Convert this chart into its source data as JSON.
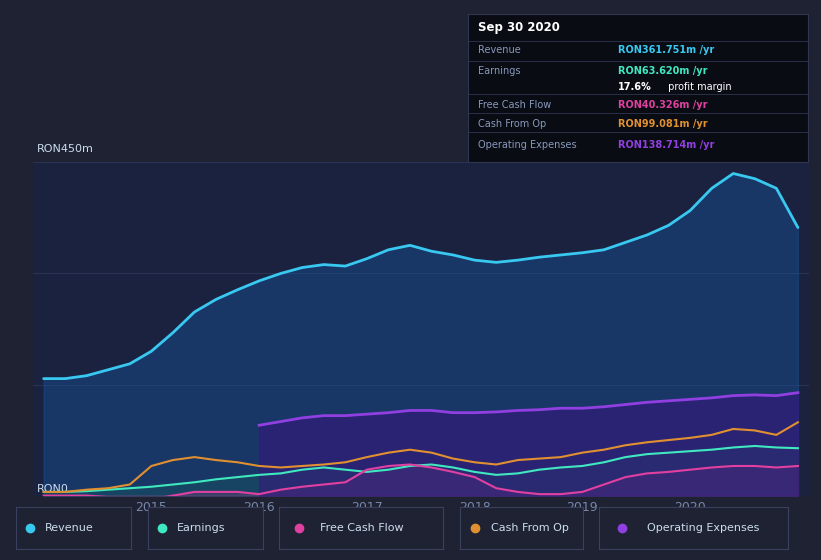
{
  "bg_color": "#1e2232",
  "chart_bg_lower": "#1a2240",
  "chart_bg_upper": "#1e2a40",
  "grid_color": "#2a3555",
  "ylabel_top": "RON450m",
  "ylabel_bottom": "RON0",
  "ylim": [
    0,
    450
  ],
  "xlim_start": 2013.9,
  "xlim_end": 2021.1,
  "x_ticks": [
    2015,
    2016,
    2017,
    2018,
    2019,
    2020
  ],
  "legend_bg": "#252a3d",
  "legend_border": "#3a4060",
  "legend_items": [
    {
      "label": "Revenue",
      "color": "#38c8f0"
    },
    {
      "label": "Earnings",
      "color": "#40e8c0"
    },
    {
      "label": "Free Cash Flow",
      "color": "#e040a0"
    },
    {
      "label": "Cash From Op",
      "color": "#e09030"
    },
    {
      "label": "Operating Expenses",
      "color": "#9040e0"
    }
  ],
  "info_box": {
    "title": "Sep 30 2020",
    "title_color": "#ffffff",
    "bg": "#0a0c14",
    "border": "#303550",
    "rows": [
      {
        "label": "Revenue",
        "value": "RON361.751m /yr",
        "vc": "#38c8f0"
      },
      {
        "label": "Earnings",
        "value": "RON63.620m /yr",
        "vc": "#40e8c0"
      },
      {
        "label": "",
        "value": "17.6% profit margin",
        "vc": "#ffffff"
      },
      {
        "label": "Free Cash Flow",
        "value": "RON40.326m /yr",
        "vc": "#e040a0"
      },
      {
        "label": "Cash From Op",
        "value": "RON99.081m /yr",
        "vc": "#e09030"
      },
      {
        "label": "Operating Expenses",
        "value": "RON138.714m /yr",
        "vc": "#9040e0"
      }
    ]
  },
  "series": {
    "x": [
      2014.0,
      2014.2,
      2014.4,
      2014.6,
      2014.8,
      2015.0,
      2015.2,
      2015.4,
      2015.6,
      2015.8,
      2016.0,
      2016.2,
      2016.4,
      2016.6,
      2016.8,
      2017.0,
      2017.2,
      2017.4,
      2017.6,
      2017.8,
      2018.0,
      2018.2,
      2018.4,
      2018.6,
      2018.8,
      2019.0,
      2019.2,
      2019.4,
      2019.6,
      2019.8,
      2020.0,
      2020.2,
      2020.4,
      2020.6,
      2020.8,
      2021.0
    ],
    "revenue": [
      158,
      158,
      162,
      170,
      178,
      195,
      220,
      248,
      265,
      278,
      290,
      300,
      308,
      312,
      310,
      320,
      332,
      338,
      330,
      325,
      318,
      315,
      318,
      322,
      325,
      328,
      332,
      342,
      352,
      365,
      385,
      415,
      435,
      428,
      415,
      362
    ],
    "earnings": [
      5,
      5,
      6,
      8,
      10,
      12,
      15,
      18,
      22,
      25,
      28,
      30,
      35,
      38,
      35,
      32,
      35,
      40,
      42,
      38,
      32,
      28,
      30,
      35,
      38,
      40,
      45,
      52,
      56,
      58,
      60,
      62,
      65,
      67,
      65,
      64
    ],
    "free_cash_flow": [
      0,
      0,
      0,
      -2,
      -5,
      -5,
      0,
      5,
      5,
      5,
      2,
      8,
      12,
      15,
      18,
      35,
      40,
      42,
      38,
      32,
      25,
      10,
      5,
      2,
      2,
      5,
      15,
      25,
      30,
      32,
      35,
      38,
      40,
      40,
      38,
      40
    ],
    "cash_from_op": [
      5,
      5,
      8,
      10,
      15,
      40,
      48,
      52,
      48,
      45,
      40,
      38,
      40,
      42,
      45,
      52,
      58,
      62,
      58,
      50,
      45,
      42,
      48,
      50,
      52,
      58,
      62,
      68,
      72,
      75,
      78,
      82,
      90,
      88,
      82,
      99
    ],
    "op_expenses": [
      0,
      0,
      0,
      0,
      0,
      0,
      0,
      0,
      0,
      0,
      95,
      100,
      105,
      108,
      108,
      110,
      112,
      115,
      115,
      112,
      112,
      113,
      115,
      116,
      118,
      118,
      120,
      123,
      126,
      128,
      130,
      132,
      135,
      136,
      135,
      139
    ]
  }
}
